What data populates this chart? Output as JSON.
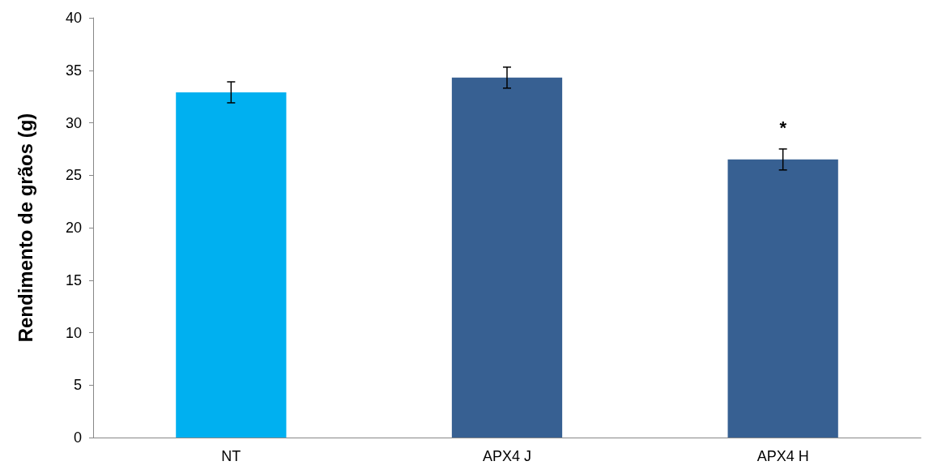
{
  "chart_data": {
    "type": "bar",
    "ylabel": "Rendimento de grãos (g)",
    "categories": [
      "NT",
      "APX4 J",
      "APX4 H"
    ],
    "values": [
      32.9,
      34.3,
      26.5
    ],
    "colors": [
      "#00b0f0",
      "#376092",
      "#376092"
    ],
    "errors": [
      1.0,
      1.0,
      1.0
    ],
    "ylim": [
      0,
      40
    ],
    "yticks": [
      0,
      5,
      10,
      15,
      20,
      25,
      30,
      35,
      40
    ],
    "grid": false,
    "annotations": [
      {
        "text": "*",
        "x": "APX4 H",
        "y": 27.5
      }
    ]
  }
}
